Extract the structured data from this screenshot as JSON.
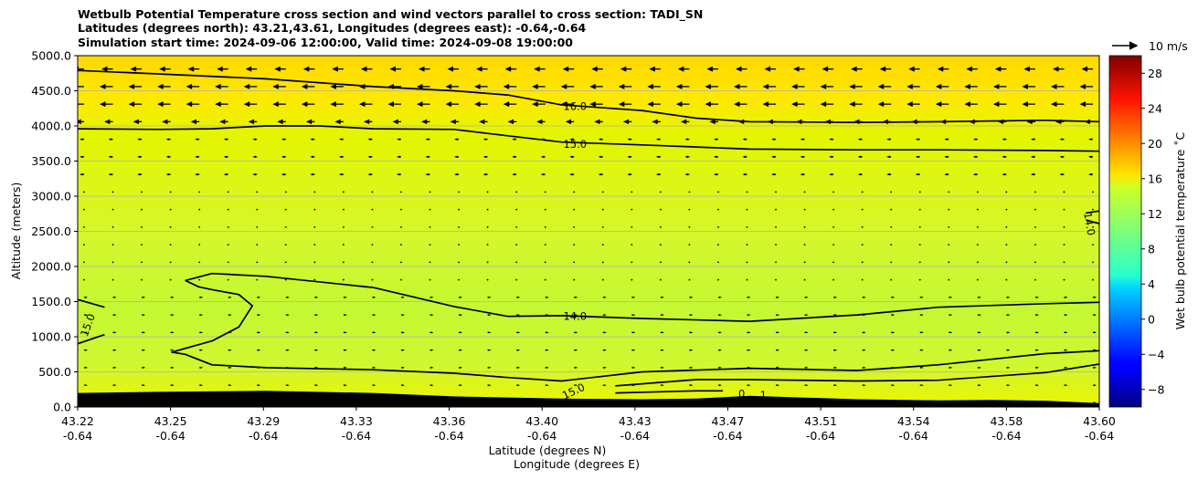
{
  "chart_data": {
    "type": "heatmap",
    "title_lines": [
      "Wetbulb Potential Temperature cross section and wind vectors parallel to cross section: TADI_SN",
      "Latitudes (degrees north): 43.21,43.61, Longitudes (degrees east): -0.64,-0.64",
      "Simulation start time: 2024-09-06 12:00:00, Valid time: 2024-09-08 19:00:00"
    ],
    "xlabel_lines": [
      "Latitude (degrees N)",
      "Longitude (degrees E)"
    ],
    "ylabel": "Altitude (meters)",
    "x_ticks": [
      {
        "lat": "43.22",
        "lon": "-0.64"
      },
      {
        "lat": "43.25",
        "lon": "-0.64"
      },
      {
        "lat": "43.29",
        "lon": "-0.64"
      },
      {
        "lat": "43.33",
        "lon": "-0.64"
      },
      {
        "lat": "43.36",
        "lon": "-0.64"
      },
      {
        "lat": "43.40",
        "lon": "-0.64"
      },
      {
        "lat": "43.43",
        "lon": "-0.64"
      },
      {
        "lat": "43.47",
        "lon": "-0.64"
      },
      {
        "lat": "43.51",
        "lon": "-0.64"
      },
      {
        "lat": "43.54",
        "lon": "-0.64"
      },
      {
        "lat": "43.58",
        "lon": "-0.64"
      },
      {
        "lat": "43.60",
        "lon": "-0.64"
      }
    ],
    "y_ticks": [
      "0.0",
      "500.0",
      "1000.0",
      "1500.0",
      "2000.0",
      "2500.0",
      "3000.0",
      "3500.0",
      "4000.0",
      "4500.0",
      "5000.0"
    ],
    "ylim": [
      0,
      5000
    ],
    "grid": "horizontal",
    "colorbar": {
      "label": "Wet bulb potential temperature $^\\circ$C",
      "label_text": "Wet bulb potential temperature ˚C",
      "range": [
        -10,
        30
      ],
      "ticks": [
        "−8",
        "−4",
        "0",
        "4",
        "8",
        "12",
        "16",
        "20",
        "24",
        "28"
      ],
      "colormap": "jet"
    },
    "quiver_key": "10 m/s",
    "contour_labels": [
      {
        "text": "16.0",
        "x": 43.405,
        "alt": 4280
      },
      {
        "text": "15.0",
        "x": 43.405,
        "alt": 3740
      },
      {
        "text": "14.0",
        "x": 43.595,
        "alt": 2650
      },
      {
        "text": "15.0",
        "x": 43.225,
        "alt": 1200
      },
      {
        "text": "14.0",
        "x": 43.405,
        "alt": 1290
      },
      {
        "text": "15.0",
        "x": 43.405,
        "alt": 230
      },
      {
        "text": "0",
        "x": 43.467,
        "alt": 190
      },
      {
        "text": "1",
        "x": 43.475,
        "alt": 170
      }
    ],
    "contours": [
      {
        "level": "16.0",
        "points": [
          [
            43.22,
            4790
          ],
          [
            43.25,
            4740
          ],
          [
            43.29,
            4670
          ],
          [
            43.33,
            4560
          ],
          [
            43.36,
            4500
          ],
          [
            43.38,
            4440
          ],
          [
            43.4,
            4300
          ],
          [
            43.43,
            4220
          ],
          [
            43.45,
            4110
          ],
          [
            43.47,
            4060
          ],
          [
            43.51,
            4050
          ],
          [
            43.54,
            4060
          ],
          [
            43.58,
            4080
          ],
          [
            43.6,
            4060
          ]
        ]
      },
      {
        "level": "15.0",
        "points": [
          [
            43.22,
            3960
          ],
          [
            43.25,
            3950
          ],
          [
            43.27,
            3960
          ],
          [
            43.29,
            4000
          ],
          [
            43.31,
            4000
          ],
          [
            43.33,
            3960
          ],
          [
            43.36,
            3950
          ],
          [
            43.38,
            3860
          ],
          [
            43.4,
            3770
          ],
          [
            43.43,
            3730
          ],
          [
            43.47,
            3670
          ],
          [
            43.51,
            3660
          ],
          [
            43.54,
            3660
          ],
          [
            43.58,
            3650
          ],
          [
            43.6,
            3640
          ]
        ]
      },
      {
        "level": "14.0",
        "points": [
          [
            43.595,
            2760
          ],
          [
            43.6,
            2790
          ]
        ]
      },
      {
        "level": "14.0",
        "points": [
          [
            43.595,
            2660
          ],
          [
            43.6,
            2610
          ]
        ]
      },
      {
        "level": "15.0",
        "points": [
          [
            43.22,
            1530
          ],
          [
            43.23,
            1420
          ]
        ]
      },
      {
        "level": "15.0",
        "points": [
          [
            43.22,
            900
          ],
          [
            43.23,
            1030
          ]
        ]
      },
      {
        "level": "14.0",
        "points": [
          [
            43.26,
            1800
          ],
          [
            43.27,
            1900
          ],
          [
            43.29,
            1860
          ],
          [
            43.33,
            1700
          ],
          [
            43.36,
            1430
          ],
          [
            43.38,
            1290
          ],
          [
            43.4,
            1300
          ],
          [
            43.43,
            1260
          ],
          [
            43.47,
            1220
          ],
          [
            43.51,
            1310
          ],
          [
            43.54,
            1420
          ],
          [
            43.58,
            1470
          ],
          [
            43.6,
            1490
          ]
        ]
      },
      {
        "level": "14.0",
        "points": [
          [
            43.26,
            1800
          ],
          [
            43.265,
            1710
          ],
          [
            43.27,
            1670
          ],
          [
            43.28,
            1600
          ],
          [
            43.285,
            1440
          ],
          [
            43.28,
            1140
          ],
          [
            43.27,
            940
          ],
          [
            43.255,
            780
          ],
          [
            43.26,
            750
          ],
          [
            43.27,
            600
          ],
          [
            43.29,
            560
          ],
          [
            43.33,
            530
          ],
          [
            43.36,
            480
          ],
          [
            43.38,
            420
          ],
          [
            43.4,
            370
          ],
          [
            43.43,
            500
          ],
          [
            43.47,
            550
          ],
          [
            43.51,
            520
          ],
          [
            43.54,
            600
          ],
          [
            43.58,
            760
          ],
          [
            43.6,
            800
          ]
        ]
      },
      {
        "level": "15.0",
        "points": [
          [
            43.42,
            300
          ],
          [
            43.45,
            390
          ],
          [
            43.47,
            390
          ],
          [
            43.51,
            370
          ],
          [
            43.54,
            380
          ],
          [
            43.58,
            490
          ],
          [
            43.6,
            610
          ]
        ]
      },
      {
        "level": "15.0",
        "points": [
          [
            43.42,
            200
          ],
          [
            43.45,
            230
          ],
          [
            43.46,
            230
          ]
        ]
      }
    ],
    "terrain_alt": [
      [
        43.22,
        200
      ],
      [
        43.25,
        215
      ],
      [
        43.29,
        230
      ],
      [
        43.33,
        200
      ],
      [
        43.36,
        150
      ],
      [
        43.4,
        120
      ],
      [
        43.43,
        110
      ],
      [
        43.45,
        120
      ],
      [
        43.47,
        160
      ],
      [
        43.51,
        110
      ],
      [
        43.54,
        95
      ],
      [
        43.56,
        100
      ],
      [
        43.58,
        90
      ],
      [
        43.6,
        55
      ]
    ]
  }
}
